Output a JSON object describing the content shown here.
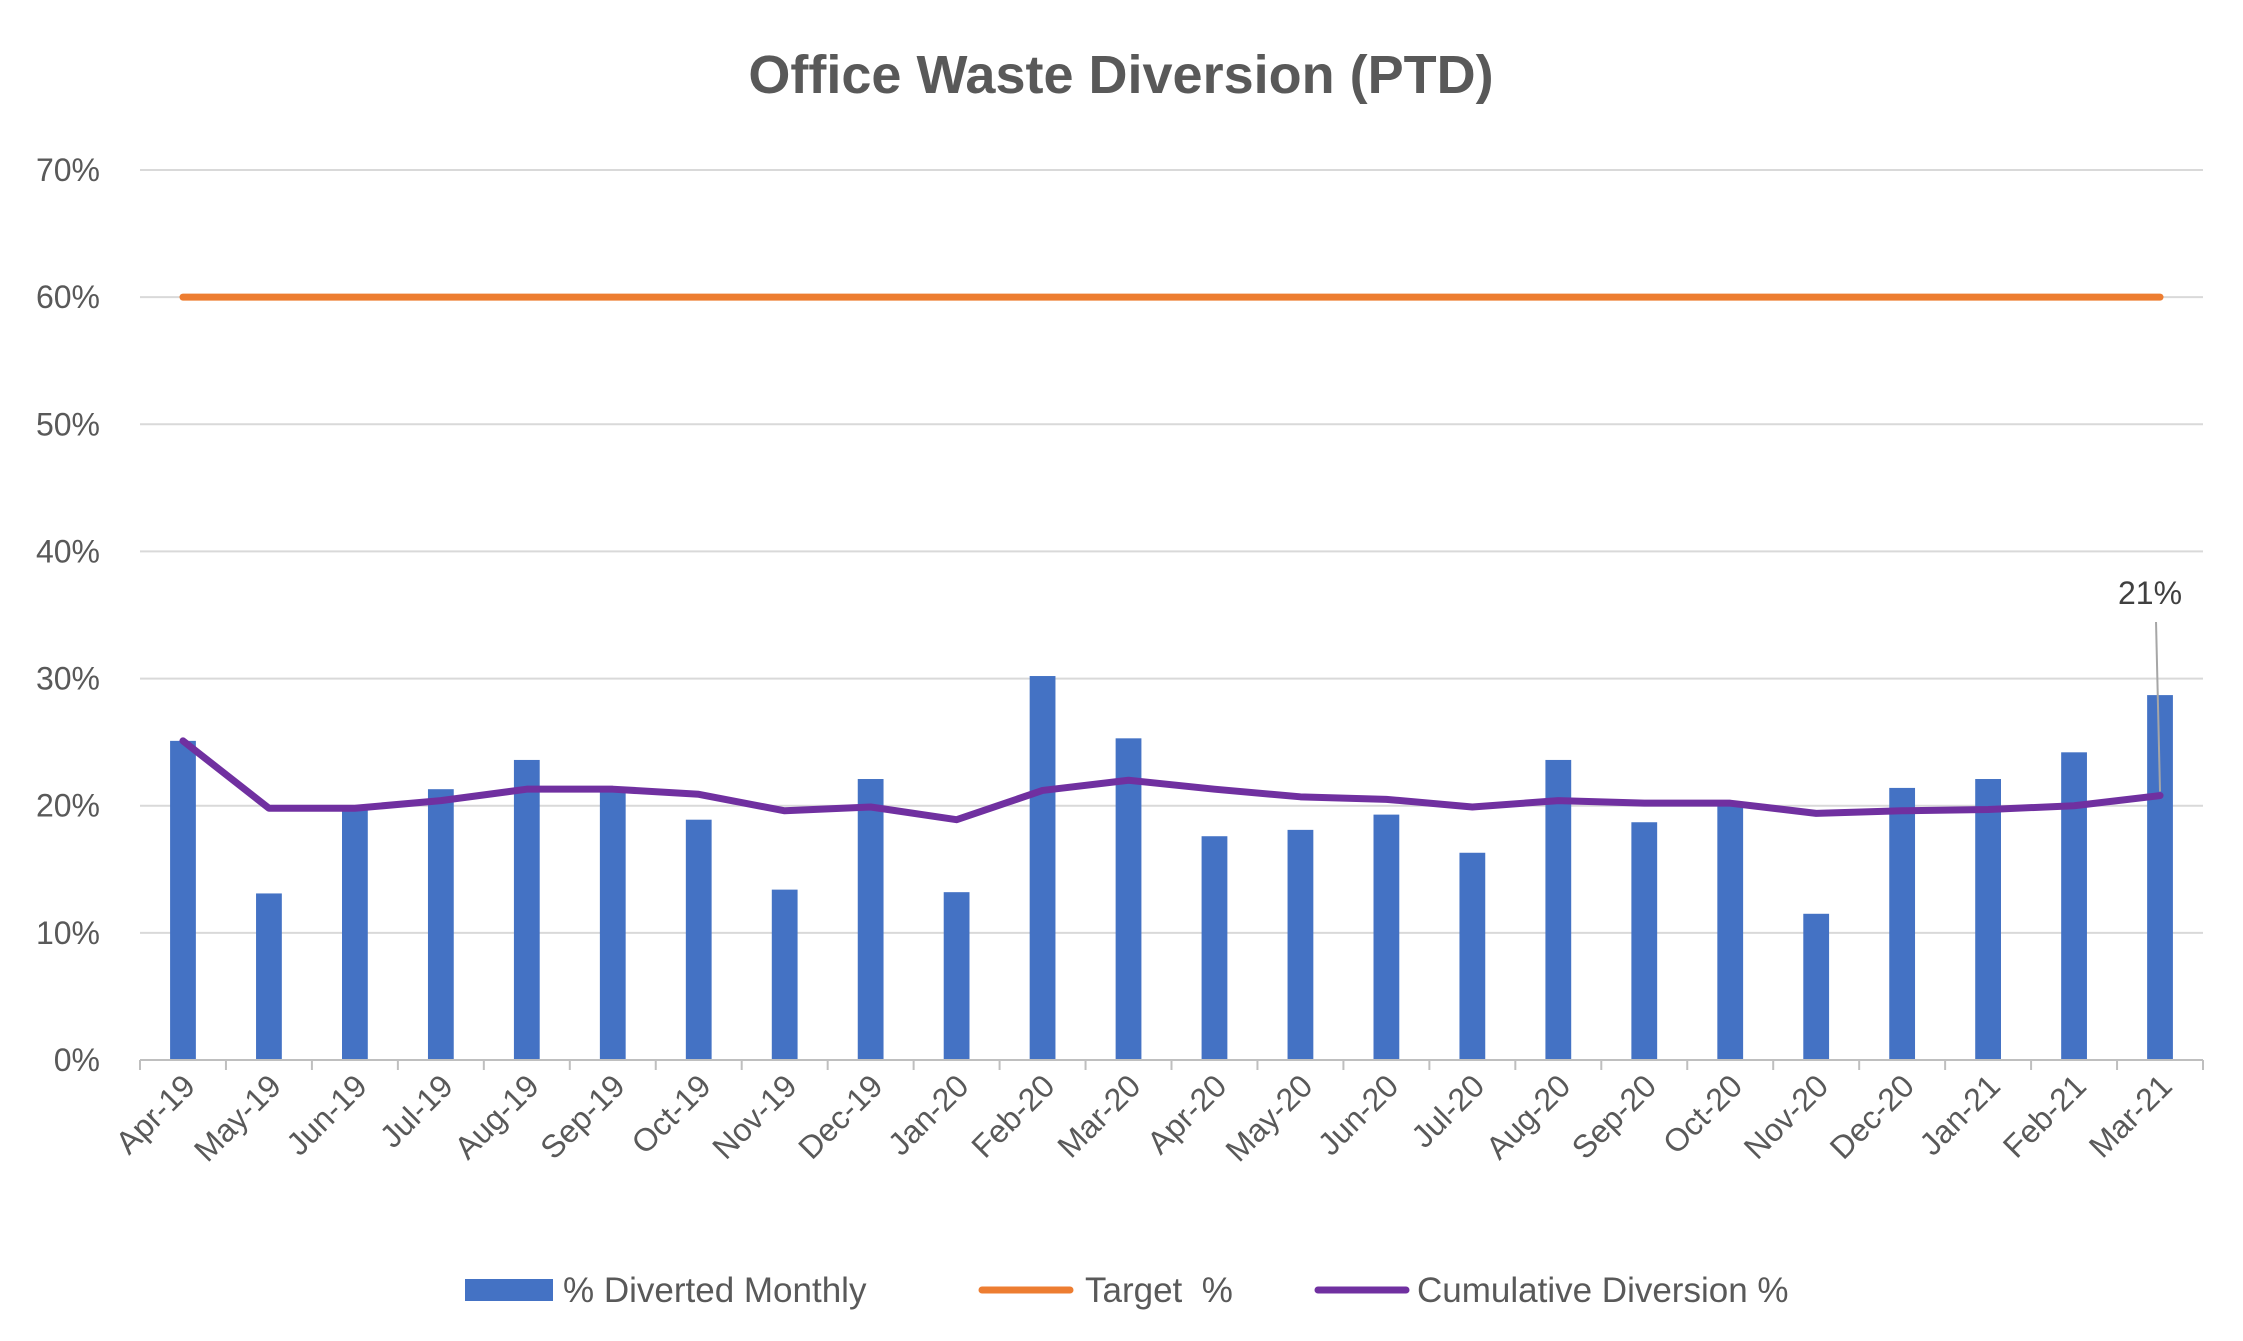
{
  "chart_data": {
    "type": "bar",
    "title": "Office Waste Diversion (PTD)",
    "xlabel": "",
    "ylabel": "",
    "ylim": [
      0,
      0.7
    ],
    "y_ticks": [
      0,
      0.1,
      0.2,
      0.3,
      0.4,
      0.5,
      0.6,
      0.7
    ],
    "y_tick_labels": [
      "0%",
      "10%",
      "20%",
      "30%",
      "40%",
      "50%",
      "60%",
      "70%"
    ],
    "grid": true,
    "legend_position": "bottom",
    "categories": [
      "Apr-19",
      "May-19",
      "Jun-19",
      "Jul-19",
      "Aug-19",
      "Sep-19",
      "Oct-19",
      "Nov-19",
      "Dec-19",
      "Jan-20",
      "Feb-20",
      "Mar-20",
      "Apr-20",
      "May-20",
      "Jun-20",
      "Jul-20",
      "Aug-20",
      "Sep-20",
      "Oct-20",
      "Nov-20",
      "Dec-20",
      "Jan-21",
      "Feb-21",
      "Mar-21"
    ],
    "series": [
      {
        "name": "% Diverted Monthly",
        "kind": "bar",
        "color": "#4472C4",
        "values": [
          0.251,
          0.131,
          0.199,
          0.213,
          0.236,
          0.213,
          0.189,
          0.134,
          0.221,
          0.132,
          0.302,
          0.253,
          0.176,
          0.181,
          0.193,
          0.163,
          0.236,
          0.187,
          0.2,
          0.115,
          0.214,
          0.221,
          0.242,
          0.287
        ]
      },
      {
        "name": "Target  %",
        "kind": "line",
        "color": "#ED7D31",
        "values": [
          0.6,
          0.6,
          0.6,
          0.6,
          0.6,
          0.6,
          0.6,
          0.6,
          0.6,
          0.6,
          0.6,
          0.6,
          0.6,
          0.6,
          0.6,
          0.6,
          0.6,
          0.6,
          0.6,
          0.6,
          0.6,
          0.6,
          0.6,
          0.6
        ]
      },
      {
        "name": "Cumulative Diversion %",
        "kind": "line",
        "color": "#7030A0",
        "values": [
          0.251,
          0.198,
          0.198,
          0.204,
          0.213,
          0.213,
          0.209,
          0.196,
          0.199,
          0.189,
          0.212,
          0.22,
          0.213,
          0.207,
          0.205,
          0.199,
          0.204,
          0.202,
          0.202,
          0.194,
          0.196,
          0.197,
          0.2,
          0.208
        ]
      }
    ],
    "annotations": [
      {
        "series": "Cumulative Diversion %",
        "category": "Mar-21",
        "text": "21%"
      }
    ]
  }
}
